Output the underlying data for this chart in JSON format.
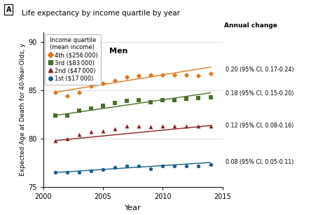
{
  "title": "Life expectancy by income quartile by year",
  "panel_label": "A",
  "subtitle": "Men",
  "xlabel": "Year",
  "ylabel": "Expected Age at Death for 40-Year-Olds, y",
  "xlim": [
    2000,
    2015
  ],
  "ylim": [
    75,
    91
  ],
  "yticks": [
    75,
    80,
    85,
    90
  ],
  "xticks": [
    2000,
    2005,
    2010,
    2015
  ],
  "background_color": "#ffffff",
  "series": [
    {
      "label": "4th ($256 000)",
      "color": "#E07820",
      "marker": "D",
      "slope": 0.2,
      "intercept_year": 2001,
      "intercept_val": 84.8,
      "annotation": "0.20 (95% CI, 0.17-0.24)",
      "ann_y": 87.1,
      "scatter_x": [
        2001,
        2002,
        2003,
        2004,
        2005,
        2006,
        2007,
        2008,
        2009,
        2010,
        2011,
        2012,
        2013,
        2014
      ],
      "scatter_y": [
        84.8,
        84.4,
        84.8,
        85.4,
        85.7,
        86.0,
        86.4,
        86.5,
        86.6,
        86.6,
        86.6,
        86.6,
        86.5,
        86.7
      ]
    },
    {
      "label": "3rd ($83 000)",
      "color": "#4a6e28",
      "marker": "s",
      "slope": 0.18,
      "intercept_year": 2001,
      "intercept_val": 82.4,
      "annotation": "0.18 (95% CI, 0.15-0.20)",
      "ann_y": 84.65,
      "scatter_x": [
        2001,
        2002,
        2003,
        2004,
        2005,
        2006,
        2007,
        2008,
        2009,
        2010,
        2011,
        2012,
        2013,
        2014
      ],
      "scatter_y": [
        82.4,
        82.4,
        82.9,
        83.1,
        83.4,
        83.7,
        83.9,
        84.0,
        83.8,
        84.0,
        84.0,
        84.1,
        84.2,
        84.3
      ]
    },
    {
      "label": "2nd ($47 000)",
      "color": "#8B2020",
      "marker": "^",
      "slope": 0.12,
      "intercept_year": 2001,
      "intercept_val": 79.8,
      "annotation": "0.12 (95% CI, 0.08-0.16)",
      "ann_y": 81.35,
      "scatter_x": [
        2001,
        2002,
        2003,
        2004,
        2005,
        2006,
        2007,
        2008,
        2009,
        2010,
        2011,
        2012,
        2013,
        2014
      ],
      "scatter_y": [
        79.8,
        80.0,
        80.4,
        80.7,
        80.8,
        81.0,
        81.3,
        81.3,
        81.2,
        81.3,
        81.3,
        81.3,
        81.3,
        81.3
      ]
    },
    {
      "label": "1st ($17 000)",
      "color": "#1a5f8a",
      "marker": "o",
      "slope": 0.08,
      "intercept_year": 2001,
      "intercept_val": 76.5,
      "annotation": "0.08 (95% CI, 0.05-0.11)",
      "ann_y": 77.55,
      "scatter_x": [
        2001,
        2002,
        2003,
        2004,
        2005,
        2006,
        2007,
        2008,
        2009,
        2010,
        2011,
        2012,
        2013,
        2014
      ],
      "scatter_y": [
        76.5,
        76.5,
        76.5,
        76.7,
        76.8,
        77.0,
        77.2,
        77.2,
        76.9,
        77.2,
        77.2,
        77.2,
        77.2,
        77.3
      ]
    }
  ],
  "legend_title": "Income quartile\n(mean income)",
  "annual_change_label": "Annual change",
  "line_x_start": 2001,
  "line_x_end": 2014
}
